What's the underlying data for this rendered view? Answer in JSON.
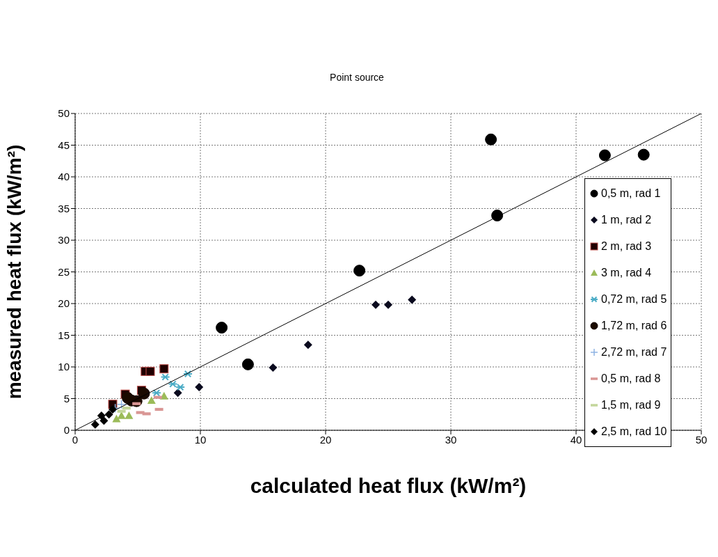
{
  "chart_data": {
    "type": "scatter",
    "title": "Point source",
    "xlabel": "calculated heat flux (kW/m²)",
    "ylabel": "measured heat flux (kW/m²)",
    "xlim": [
      0,
      50
    ],
    "ylim": [
      0,
      50
    ],
    "xticks": [
      0,
      10,
      20,
      30,
      40,
      50
    ],
    "yticks": [
      0,
      5,
      10,
      15,
      20,
      25,
      30,
      35,
      40,
      45,
      50
    ],
    "grid": true,
    "legend": "right",
    "series": [
      {
        "name": "0,5 m, rad 1",
        "color": "#000000",
        "marker": "circle",
        "x": [
          33.2,
          42.3,
          45.4,
          33.7,
          22.7,
          11.7,
          13.8
        ],
        "values": [
          45.9,
          43.4,
          43.5,
          33.9,
          25.2,
          16.2,
          10.4
        ]
      },
      {
        "name": "1 m, rad 2",
        "color": "#0a0a1e",
        "marker": "diamond",
        "x": [
          24,
          25,
          26.9,
          18.6,
          15.8,
          9.9,
          8.2
        ],
        "values": [
          19.8,
          19.8,
          20.6,
          13.5,
          9.9,
          6.8,
          5.9
        ]
      },
      {
        "name": "2 m, rad 3",
        "color": "#200000",
        "marker": "square",
        "x": [
          5.6,
          6.0,
          7.1,
          4.0,
          5.3,
          3.0
        ],
        "values": [
          9.3,
          9.3,
          9.7,
          5.7,
          6.3,
          4.1
        ]
      },
      {
        "name": "3 m, rad 4",
        "color": "#9bbb59",
        "marker": "triangle",
        "x": [
          7.1,
          6.1,
          3.7,
          4.3,
          3.3
        ],
        "values": [
          5.4,
          4.7,
          2.3,
          2.3,
          1.8
        ]
      },
      {
        "name": "0,72 m, rad 5",
        "color": "#4bacc6",
        "marker": "cross",
        "x": [
          9.0,
          7.2,
          7.8,
          8.4,
          6.5
        ],
        "values": [
          8.9,
          8.4,
          7.3,
          6.8,
          5.9
        ]
      },
      {
        "name": "1,72 m, rad 6",
        "color": "#1a0a00",
        "marker": "circle",
        "x": [
          5.5,
          4.9,
          4.5,
          4.2
        ],
        "values": [
          5.8,
          4.6,
          4.7,
          5.1
        ]
      },
      {
        "name": "2,72 m, rad 7",
        "color": "#8eb4e3",
        "marker": "cross",
        "x": [
          3.7,
          3.2
        ],
        "values": [
          4.1,
          3.5
        ]
      },
      {
        "name": "0,5 m, rad 8",
        "color": "#d99694",
        "marker": "square",
        "x": [
          4.9,
          6.6,
          6.7,
          5.7,
          5.2
        ],
        "values": [
          4.2,
          5.2,
          3.3,
          2.6,
          2.8
        ]
      },
      {
        "name": "1,5 m, rad 9",
        "color": "#c3d69b",
        "marker": "square",
        "x": [
          4.1,
          3.7
        ],
        "values": [
          3.5,
          3.0
        ]
      },
      {
        "name": "2,5 m, rad 10",
        "color": "#000000",
        "marker": "diamond",
        "x": [
          1.6,
          2.3,
          2.1,
          2.7,
          3.0
        ],
        "values": [
          0.9,
          1.5,
          2.3,
          2.5,
          3.3
        ]
      },
      {
        "type": "line",
        "color": "#000000",
        "marker": "none",
        "x": [
          0,
          50
        ],
        "values": [
          0,
          50
        ]
      }
    ]
  }
}
